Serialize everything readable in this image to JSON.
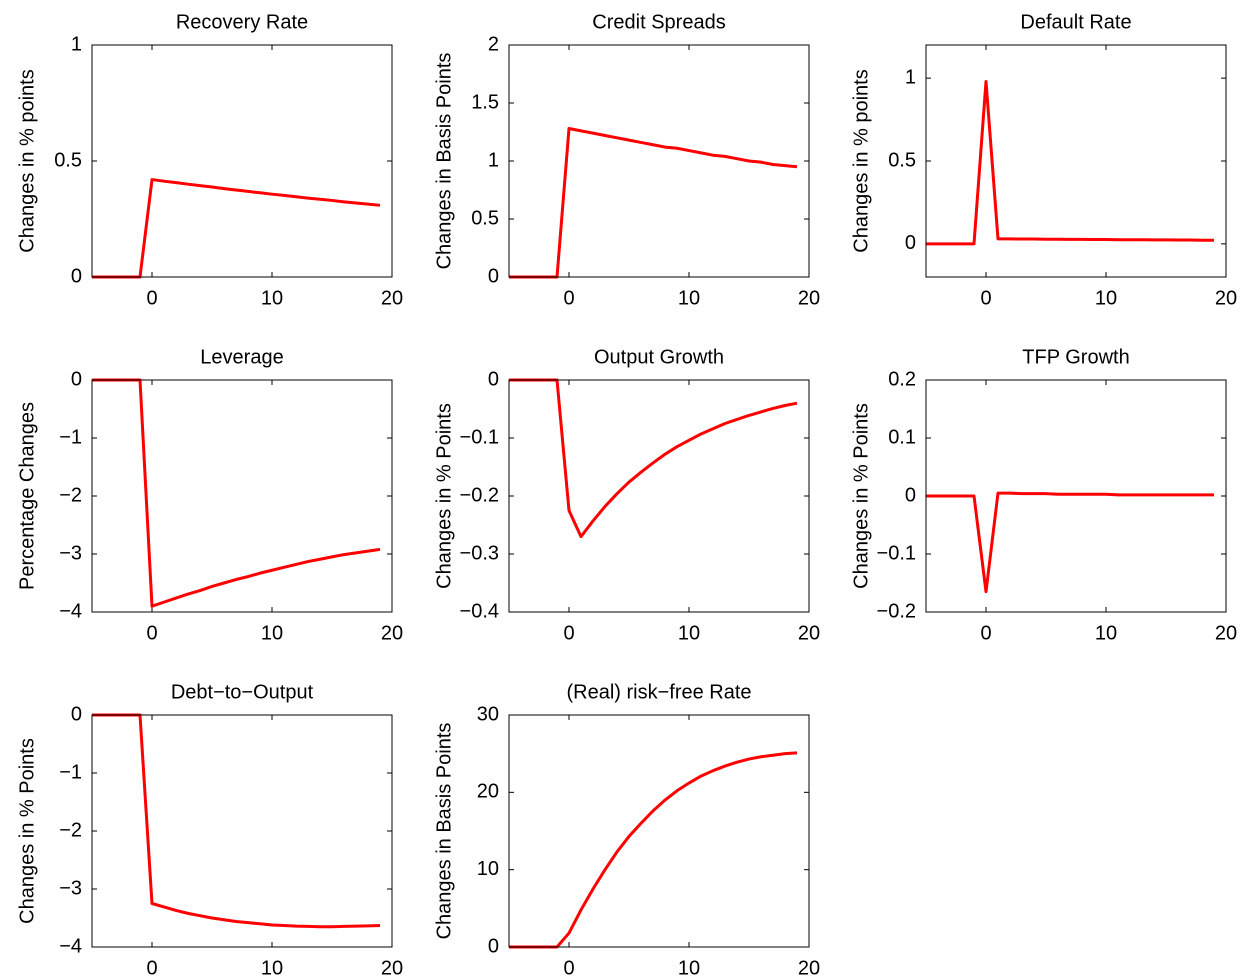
{
  "chart_data": [
    {
      "type": "line",
      "title": "Recovery Rate",
      "ylabel": "Changes in % points",
      "x": [
        -5,
        -4,
        -3,
        -2,
        -1,
        0,
        1,
        2,
        3,
        4,
        5,
        6,
        7,
        8,
        9,
        10,
        11,
        12,
        13,
        14,
        15,
        16,
        17,
        18,
        19
      ],
      "values": [
        0,
        0,
        0,
        0,
        0,
        0.42,
        0.413,
        0.407,
        0.4,
        0.394,
        0.388,
        0.381,
        0.375,
        0.369,
        0.363,
        0.357,
        0.352,
        0.346,
        0.34,
        0.335,
        0.33,
        0.324,
        0.319,
        0.314,
        0.309
      ],
      "color": "#ff0000",
      "xlim": [
        -5,
        20
      ],
      "ylim": [
        0,
        1
      ],
      "xticks": [
        0,
        10,
        20
      ],
      "yticks": [
        0,
        0.5,
        1
      ]
    },
    {
      "type": "line",
      "title": "Credit Spreads",
      "ylabel": "Changes in Basis Points",
      "x": [
        -5,
        -4,
        -3,
        -2,
        -1,
        0,
        1,
        2,
        3,
        4,
        5,
        6,
        7,
        8,
        9,
        10,
        11,
        12,
        13,
        14,
        15,
        16,
        17,
        18,
        19
      ],
      "values": [
        0,
        0,
        0,
        0,
        0,
        1.28,
        1.26,
        1.24,
        1.22,
        1.2,
        1.18,
        1.16,
        1.14,
        1.12,
        1.11,
        1.09,
        1.07,
        1.05,
        1.04,
        1.02,
        1.0,
        0.99,
        0.97,
        0.96,
        0.95
      ],
      "color": "#ff0000",
      "xlim": [
        -5,
        20
      ],
      "ylim": [
        0,
        2
      ],
      "xticks": [
        0,
        10,
        20
      ],
      "yticks": [
        0,
        0.5,
        1,
        1.5,
        2
      ]
    },
    {
      "type": "line",
      "title": "Default Rate",
      "ylabel": "Changes in % points",
      "x": [
        -5,
        -4,
        -3,
        -2,
        -1,
        0,
        1,
        2,
        3,
        4,
        5,
        6,
        7,
        8,
        9,
        10,
        11,
        12,
        13,
        14,
        15,
        16,
        17,
        18,
        19
      ],
      "values": [
        0,
        0,
        0,
        0,
        0,
        0.98,
        0.03,
        0.03,
        0.029,
        0.029,
        0.028,
        0.028,
        0.027,
        0.027,
        0.026,
        0.026,
        0.025,
        0.025,
        0.025,
        0.024,
        0.024,
        0.023,
        0.023,
        0.022,
        0.022
      ],
      "color": "#ff0000",
      "xlim": [
        -5,
        20
      ],
      "ylim": [
        -0.2,
        1.2
      ],
      "xticks": [
        0,
        10,
        20
      ],
      "yticks": [
        0,
        0.5,
        1
      ]
    },
    {
      "type": "line",
      "title": "Leverage",
      "ylabel": "Percentage Changes",
      "x": [
        -5,
        -4,
        -3,
        -2,
        -1,
        0,
        1,
        2,
        3,
        4,
        5,
        6,
        7,
        8,
        9,
        10,
        11,
        12,
        13,
        14,
        15,
        16,
        17,
        18,
        19
      ],
      "values": [
        0,
        0,
        0,
        0,
        0,
        -3.9,
        -3.83,
        -3.76,
        -3.69,
        -3.63,
        -3.56,
        -3.5,
        -3.44,
        -3.39,
        -3.33,
        -3.28,
        -3.23,
        -3.18,
        -3.13,
        -3.09,
        -3.05,
        -3.01,
        -2.98,
        -2.95,
        -2.92
      ],
      "color": "#ff0000",
      "xlim": [
        -5,
        20
      ],
      "ylim": [
        -4,
        0
      ],
      "xticks": [
        0,
        10,
        20
      ],
      "yticks": [
        {
          "value": -4,
          "label": "−4"
        },
        {
          "value": -3,
          "label": "−3"
        },
        {
          "value": -2,
          "label": "−2"
        },
        {
          "value": -1,
          "label": "−1"
        },
        0
      ]
    },
    {
      "type": "line",
      "title": "Output Growth",
      "ylabel": "Changes in % Points",
      "x": [
        -5,
        -4,
        -3,
        -2,
        -1,
        0,
        1,
        2,
        3,
        4,
        5,
        6,
        7,
        8,
        9,
        10,
        11,
        12,
        13,
        14,
        15,
        16,
        17,
        18,
        19
      ],
      "values": [
        0,
        0,
        0,
        0,
        0,
        -0.225,
        -0.27,
        -0.243,
        -0.218,
        -0.196,
        -0.176,
        -0.159,
        -0.143,
        -0.128,
        -0.115,
        -0.104,
        -0.093,
        -0.084,
        -0.075,
        -0.068,
        -0.061,
        -0.055,
        -0.049,
        -0.044,
        -0.04
      ],
      "color": "#ff0000",
      "xlim": [
        -5,
        20
      ],
      "ylim": [
        -0.4,
        0
      ],
      "xticks": [
        0,
        10,
        20
      ],
      "yticks": [
        {
          "value": -0.4,
          "label": "−0.4"
        },
        {
          "value": -0.3,
          "label": "−0.3"
        },
        {
          "value": -0.2,
          "label": "−0.2"
        },
        {
          "value": -0.1,
          "label": "−0.1"
        },
        0
      ]
    },
    {
      "type": "line",
      "title": "TFP Growth",
      "ylabel": "Changes in % Points",
      "x": [
        -5,
        -4,
        -3,
        -2,
        -1,
        0,
        1,
        2,
        3,
        4,
        5,
        6,
        7,
        8,
        9,
        10,
        11,
        12,
        13,
        14,
        15,
        16,
        17,
        18,
        19
      ],
      "values": [
        0,
        0,
        0,
        0,
        0,
        -0.165,
        0.005,
        0.005,
        0.004,
        0.004,
        0.004,
        0.003,
        0.003,
        0.003,
        0.003,
        0.003,
        0.002,
        0.002,
        0.002,
        0.002,
        0.002,
        0.002,
        0.002,
        0.002,
        0.002
      ],
      "color": "#ff0000",
      "xlim": [
        -5,
        20
      ],
      "ylim": [
        -0.2,
        0.2
      ],
      "xticks": [
        0,
        10,
        20
      ],
      "yticks": [
        {
          "value": -0.2,
          "label": "−0.2"
        },
        {
          "value": -0.1,
          "label": "−0.1"
        },
        0,
        0.1,
        0.2
      ]
    },
    {
      "type": "line",
      "title": "Debt−to−Output",
      "ylabel": "Changes in % Points",
      "x": [
        -5,
        -4,
        -3,
        -2,
        -1,
        0,
        1,
        2,
        3,
        4,
        5,
        6,
        7,
        8,
        9,
        10,
        11,
        12,
        13,
        14,
        15,
        16,
        17,
        18,
        19
      ],
      "values": [
        0,
        0,
        0,
        0,
        0,
        -3.25,
        -3.31,
        -3.37,
        -3.42,
        -3.46,
        -3.5,
        -3.53,
        -3.56,
        -3.58,
        -3.6,
        -3.62,
        -3.63,
        -3.64,
        -3.645,
        -3.65,
        -3.65,
        -3.645,
        -3.64,
        -3.635,
        -3.63
      ],
      "color": "#ff0000",
      "xlim": [
        -5,
        20
      ],
      "ylim": [
        -4,
        0
      ],
      "xticks": [
        0,
        10,
        20
      ],
      "yticks": [
        {
          "value": -4,
          "label": "−4"
        },
        {
          "value": -3,
          "label": "−3"
        },
        {
          "value": -2,
          "label": "−2"
        },
        {
          "value": -1,
          "label": "−1"
        },
        0
      ]
    },
    {
      "type": "line",
      "title": "(Real) risk−free Rate",
      "ylabel": "Changes in Basis Points",
      "x": [
        -5,
        -4,
        -3,
        -2,
        -1,
        0,
        1,
        2,
        3,
        4,
        5,
        6,
        7,
        8,
        9,
        10,
        11,
        12,
        13,
        14,
        15,
        16,
        17,
        18,
        19
      ],
      "values": [
        0,
        0,
        0,
        0,
        0,
        1.8,
        4.8,
        7.5,
        10.0,
        12.3,
        14.3,
        16.0,
        17.6,
        19.0,
        20.2,
        21.2,
        22.1,
        22.8,
        23.4,
        23.9,
        24.3,
        24.6,
        24.8,
        25.0,
        25.1
      ],
      "color": "#ff0000",
      "xlim": [
        -5,
        20
      ],
      "ylim": [
        0,
        30
      ],
      "xticks": [
        0,
        10,
        20
      ],
      "yticks": [
        0,
        10,
        20,
        30
      ]
    }
  ]
}
